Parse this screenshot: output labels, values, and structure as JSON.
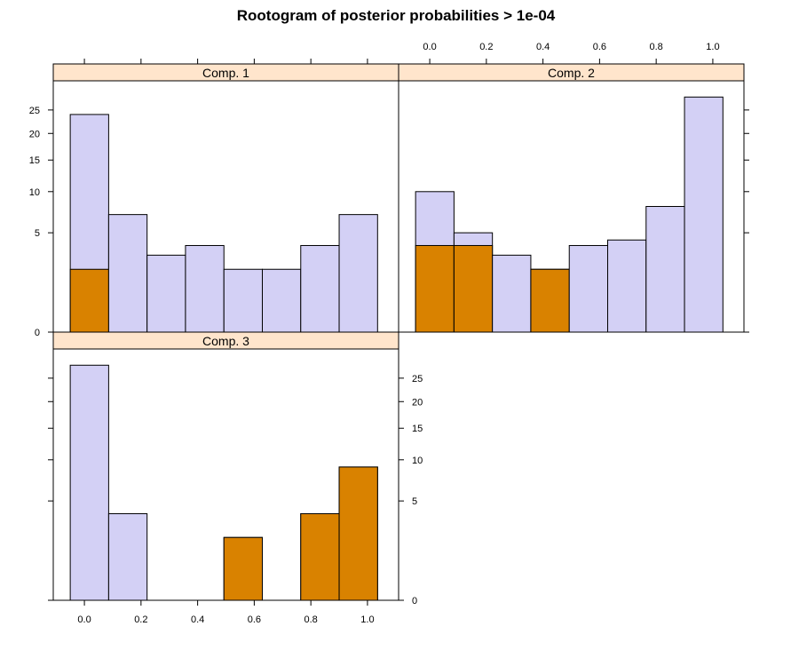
{
  "title": "Rootogram of posterior probabilities > 1e-04",
  "colors": {
    "strip_background": "#ffe5cc",
    "bar_total": "#d3d0f5",
    "bar_cluster": "#d98200",
    "frame": "#000000"
  },
  "chart_data": {
    "type": "bar",
    "layout": "2x2 trellis panels (Comp. 1 top-left, Comp. 2 top-right, Comp. 3 bottom-left)",
    "scale": "square-root",
    "bins": [
      [
        -0.05,
        0.0857
      ],
      [
        0.0857,
        0.2214
      ],
      [
        0.2214,
        0.3571
      ],
      [
        0.3571,
        0.4929
      ],
      [
        0.4929,
        0.6286
      ],
      [
        0.6286,
        0.7643
      ],
      [
        0.7643,
        0.9
      ],
      [
        0.9,
        1.0357
      ]
    ],
    "xlim": [
      -0.11,
      1.11
    ],
    "ylim": [
      0,
      32
    ],
    "x_ticks": [
      0.0,
      0.2,
      0.4,
      0.6,
      0.8,
      1.0
    ],
    "x_tick_labels": [
      "0.0",
      "0.2",
      "0.4",
      "0.6",
      "0.8",
      "1.0"
    ],
    "y_ticks": [
      0,
      5,
      10,
      15,
      20,
      25
    ],
    "y_tick_labels": [
      "0",
      "5",
      "10",
      "15",
      "20",
      "25"
    ],
    "panels": [
      {
        "name": "Comp. 1",
        "total": [
          24,
          7,
          3,
          3.8,
          2,
          2,
          3.8,
          7
        ],
        "cluster": [
          2,
          0,
          0,
          0,
          0,
          0,
          0,
          0
        ]
      },
      {
        "name": "Comp. 2",
        "total": [
          10,
          5,
          3,
          2,
          3.8,
          4.3,
          8,
          28
        ],
        "cluster": [
          3.8,
          3.8,
          0,
          2,
          0,
          0,
          0,
          0
        ]
      },
      {
        "name": "Comp. 3",
        "total": [
          28,
          3.8,
          0,
          0,
          2,
          0,
          3.8,
          9
        ],
        "cluster": [
          0,
          0,
          0,
          0,
          2,
          0,
          3.8,
          9
        ]
      }
    ]
  }
}
